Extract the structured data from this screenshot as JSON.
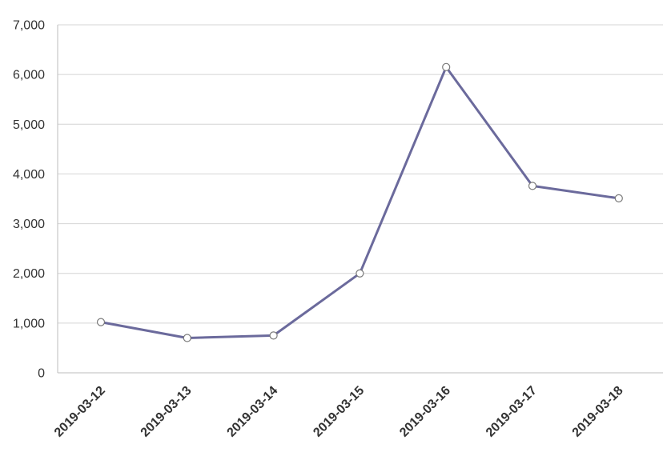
{
  "chart_data": {
    "type": "line",
    "title": "",
    "xlabel": "",
    "ylabel": "",
    "categories": [
      "2019-03-12",
      "2019-03-13",
      "2019-03-14",
      "2019-03-15",
      "2019-03-16",
      "2019-03-17",
      "2019-03-18"
    ],
    "series": [
      {
        "values": [
          1020,
          700,
          750,
          2000,
          6150,
          3760,
          3510
        ],
        "color": "#6b6a9c",
        "marker_stroke": "#7a7a7a"
      }
    ],
    "ylim": [
      0,
      7000
    ],
    "y_ticks": [
      0,
      1000,
      2000,
      3000,
      4000,
      5000,
      6000,
      7000
    ],
    "y_tick_labels": [
      "0",
      "1,000",
      "2,000",
      "3,000",
      "4,000",
      "5,000",
      "6,000",
      "7,000"
    ],
    "grid": true,
    "legend": "none"
  }
}
